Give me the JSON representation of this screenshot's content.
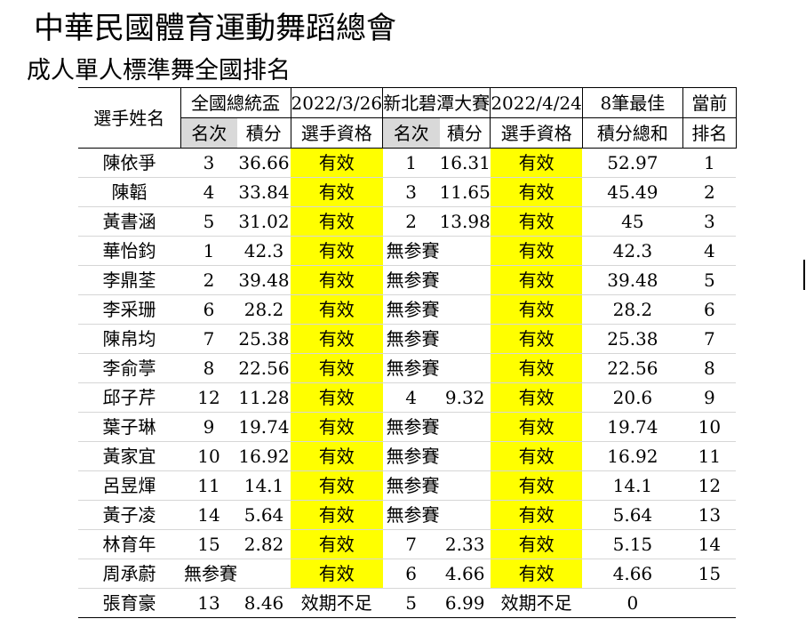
{
  "title": "中華民國體育運動舞蹈總會",
  "subtitle": "成人單人標準舞全國排名",
  "header": {
    "name": "選手姓名",
    "event1": "全國總統盃",
    "event1_date": "2022/3/26",
    "event2": "新北碧潭大賽",
    "event2_date": "2022/4/24",
    "best_total_line1": "8筆最佳",
    "best_total_line2": "積分總和",
    "rank_line1": "當前",
    "rank_line2": "排名",
    "place": "名次",
    "points": "積分",
    "eligibility": "選手資格"
  },
  "rows": [
    {
      "name": "陳依爭",
      "p1": "3",
      "s1": "36.66",
      "q1": "有效",
      "p2": "1",
      "s2": "16.31",
      "q2": "有效",
      "total": "52.97",
      "rank": "1"
    },
    {
      "name": "陳韜",
      "p1": "4",
      "s1": "33.84",
      "q1": "有效",
      "p2": "3",
      "s2": "11.65",
      "q2": "有效",
      "total": "45.49",
      "rank": "2"
    },
    {
      "name": "黃書涵",
      "p1": "5",
      "s1": "31.02",
      "q1": "有效",
      "p2": "2",
      "s2": "13.98",
      "q2": "有效",
      "total": "45",
      "rank": "3"
    },
    {
      "name": "華怡鈞",
      "p1": "1",
      "s1": "42.3",
      "q1": "有效",
      "p2": "無参賽",
      "s2": "",
      "q2": "有效",
      "total": "42.3",
      "rank": "4"
    },
    {
      "name": "李鼎荃",
      "p1": "2",
      "s1": "39.48",
      "q1": "有效",
      "p2": "無参賽",
      "s2": "",
      "q2": "有效",
      "total": "39.48",
      "rank": "5"
    },
    {
      "name": "李采珊",
      "p1": "6",
      "s1": "28.2",
      "q1": "有效",
      "p2": "無参賽",
      "s2": "",
      "q2": "有效",
      "total": "28.2",
      "rank": "6"
    },
    {
      "name": "陳帛均",
      "p1": "7",
      "s1": "25.38",
      "q1": "有效",
      "p2": "無参賽",
      "s2": "",
      "q2": "有效",
      "total": "25.38",
      "rank": "7"
    },
    {
      "name": "李俞葶",
      "p1": "8",
      "s1": "22.56",
      "q1": "有效",
      "p2": "無参賽",
      "s2": "",
      "q2": "有效",
      "total": "22.56",
      "rank": "8"
    },
    {
      "name": "邱子芹",
      "p1": "12",
      "s1": "11.28",
      "q1": "有效",
      "p2": "4",
      "s2": "9.32",
      "q2": "有效",
      "total": "20.6",
      "rank": "9"
    },
    {
      "name": "葉子琳",
      "p1": "9",
      "s1": "19.74",
      "q1": "有效",
      "p2": "無参賽",
      "s2": "",
      "q2": "有效",
      "total": "19.74",
      "rank": "10"
    },
    {
      "name": "黃家宜",
      "p1": "10",
      "s1": "16.92",
      "q1": "有效",
      "p2": "無参賽",
      "s2": "",
      "q2": "有效",
      "total": "16.92",
      "rank": "11"
    },
    {
      "name": "呂昱煇",
      "p1": "11",
      "s1": "14.1",
      "q1": "有效",
      "p2": "無参賽",
      "s2": "",
      "q2": "有效",
      "total": "14.1",
      "rank": "12"
    },
    {
      "name": "黃子凌",
      "p1": "14",
      "s1": "5.64",
      "q1": "有效",
      "p2": "無参賽",
      "s2": "",
      "q2": "有效",
      "total": "5.64",
      "rank": "13"
    },
    {
      "name": "林育年",
      "p1": "15",
      "s1": "2.82",
      "q1": "有效",
      "p2": "7",
      "s2": "2.33",
      "q2": "有效",
      "total": "5.15",
      "rank": "14"
    },
    {
      "name": "周承蔚",
      "p1": "無参賽",
      "s1": "",
      "q1": "有效",
      "p2": "6",
      "s2": "4.66",
      "q2": "有效",
      "total": "4.66",
      "rank": "15"
    },
    {
      "name": "張育豪",
      "p1": "13",
      "s1": "8.46",
      "q1": "效期不足",
      "p2": "5",
      "s2": "6.99",
      "q2": "效期不足",
      "total": "0",
      "rank": ""
    }
  ],
  "colors": {
    "valid_highlight": "#ffff00",
    "header_grey": "#d9d9d9"
  }
}
